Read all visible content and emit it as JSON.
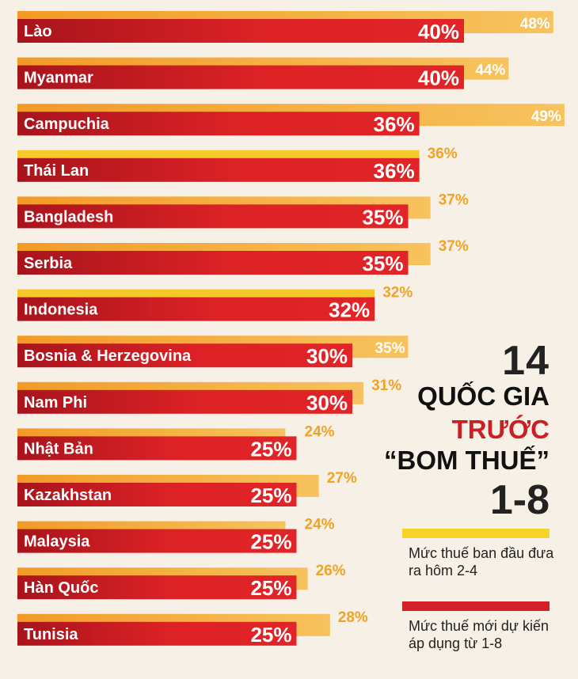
{
  "colors": {
    "background": "#f6f0e6",
    "initial_rate_bar": "#f4a52c",
    "initial_rate_bar_light": "#f7c15d",
    "new_rate_bar_dark": "#a7141c",
    "new_rate_bar": "#dd2226",
    "initial_label_text": "#f0a326",
    "title_highlight": "#c91f25"
  },
  "title": {
    "number": "14",
    "line1": "QUỐC GIA",
    "line2": "TRƯỚC",
    "line3": "“BOM THUẾ”",
    "line4": "1-8"
  },
  "legend": {
    "initial": {
      "color": "#f6d52a",
      "text": "Mức thuế ban đầu đưa ra hôm 2-4"
    },
    "new": {
      "color": "#d42027",
      "text": "Mức thuế mới dự kiến áp dụng từ 1-8"
    }
  },
  "chart_data": {
    "type": "bar",
    "orientation": "horizontal",
    "categories": [
      "Lào",
      "Myanmar",
      "Campuchia",
      "Thái Lan",
      "Bangladesh",
      "Serbia",
      "Indonesia",
      "Bosnia & Herzegovina",
      "Nam Phi",
      "Nhật Bản",
      "Kazakhstan",
      "Malaysia",
      "Hàn Quốc",
      "Tunisia"
    ],
    "series": [
      {
        "name": "Mức thuế ban đầu đưa ra hôm 2-4",
        "values": [
          48,
          44,
          49,
          36,
          37,
          37,
          32,
          35,
          31,
          24,
          27,
          24,
          26,
          28
        ],
        "labels": [
          "48%",
          "44%",
          "49%",
          "36%",
          "37%",
          "37%",
          "32%",
          "35%",
          "31%",
          "24%",
          "27%",
          "24%",
          "26%",
          "28%"
        ]
      },
      {
        "name": "Mức thuế mới dự kiến áp dụng từ 1-8",
        "values": [
          40,
          40,
          36,
          36,
          35,
          35,
          32,
          30,
          30,
          25,
          25,
          25,
          25,
          25
        ],
        "labels": [
          "40%",
          "40%",
          "36%",
          "36%",
          "35%",
          "35%",
          "32%",
          "30%",
          "30%",
          "25%",
          "25%",
          "25%",
          "25%",
          "25%"
        ]
      }
    ],
    "xlim": [
      0,
      50
    ],
    "grid": false,
    "legend": "bottom-right"
  }
}
